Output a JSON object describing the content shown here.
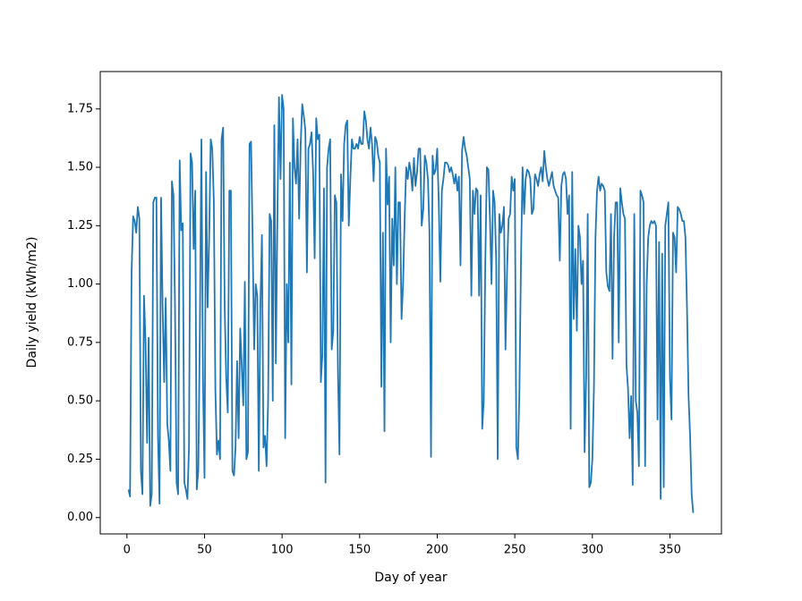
{
  "chart_data": {
    "type": "line",
    "xlabel": "Day of year",
    "ylabel": "Daily yield (kWh/m2)",
    "color": "#1f77b4",
    "xlim": [
      -17.2,
      383.2
    ],
    "ylim": [
      -0.07,
      1.91
    ],
    "xticks": [
      0,
      50,
      100,
      150,
      200,
      250,
      300,
      350
    ],
    "yticks": [
      {
        "value": 0,
        "label": "0.00"
      },
      {
        "value": 0.25,
        "label": "0.25"
      },
      {
        "value": 0.5,
        "label": "0.50"
      },
      {
        "value": 0.75,
        "label": "0.75"
      },
      {
        "value": 1,
        "label": "1.00"
      },
      {
        "value": 1.25,
        "label": "1.25"
      },
      {
        "value": 1.5,
        "label": "1.50"
      },
      {
        "value": 1.75,
        "label": "1.75"
      }
    ],
    "x": [
      1,
      2,
      3,
      4,
      5,
      6,
      7,
      8,
      9,
      10,
      11,
      12,
      13,
      14,
      15,
      16,
      17,
      18,
      19,
      20,
      21,
      22,
      23,
      24,
      25,
      26,
      27,
      28,
      29,
      30,
      31,
      32,
      33,
      34,
      35,
      36,
      37,
      38,
      39,
      40,
      41,
      42,
      43,
      44,
      45,
      46,
      47,
      48,
      49,
      50,
      51,
      52,
      53,
      54,
      55,
      56,
      57,
      58,
      59,
      60,
      61,
      62,
      63,
      64,
      65,
      66,
      67,
      68,
      69,
      70,
      71,
      72,
      73,
      74,
      75,
      76,
      77,
      78,
      79,
      80,
      81,
      82,
      83,
      84,
      85,
      86,
      87,
      88,
      89,
      90,
      91,
      92,
      93,
      94,
      95,
      96,
      97,
      98,
      99,
      100,
      101,
      102,
      103,
      104,
      105,
      106,
      107,
      108,
      109,
      110,
      111,
      112,
      113,
      114,
      115,
      116,
      117,
      118,
      119,
      120,
      121,
      122,
      123,
      124,
      125,
      126,
      127,
      128,
      129,
      130,
      131,
      132,
      133,
      134,
      135,
      136,
      137,
      138,
      139,
      140,
      141,
      142,
      143,
      144,
      145,
      146,
      147,
      148,
      149,
      150,
      151,
      152,
      153,
      154,
      155,
      156,
      157,
      158,
      159,
      160,
      161,
      162,
      163,
      164,
      165,
      166,
      167,
      168,
      169,
      170,
      171,
      172,
      173,
      174,
      175,
      176,
      177,
      178,
      179,
      180,
      181,
      182,
      183,
      184,
      185,
      186,
      187,
      188,
      189,
      190,
      191,
      192,
      193,
      194,
      195,
      196,
      197,
      198,
      199,
      200,
      201,
      202,
      203,
      204,
      205,
      206,
      207,
      208,
      209,
      210,
      211,
      212,
      213,
      214,
      215,
      216,
      217,
      218,
      219,
      220,
      221,
      222,
      223,
      224,
      225,
      226,
      227,
      228,
      229,
      230,
      231,
      232,
      233,
      234,
      235,
      236,
      237,
      238,
      239,
      240,
      241,
      242,
      243,
      244,
      245,
      246,
      247,
      248,
      249,
      250,
      251,
      252,
      253,
      254,
      255,
      256,
      257,
      258,
      259,
      260,
      261,
      262,
      263,
      264,
      265,
      266,
      267,
      268,
      269,
      270,
      271,
      272,
      273,
      274,
      275,
      276,
      277,
      278,
      279,
      280,
      281,
      282,
      283,
      284,
      285,
      286,
      287,
      288,
      289,
      290,
      291,
      292,
      293,
      294,
      295,
      296,
      297,
      298,
      299,
      300,
      301,
      302,
      303,
      304,
      305,
      306,
      307,
      308,
      309,
      310,
      311,
      312,
      313,
      314,
      315,
      316,
      317,
      318,
      319,
      320,
      321,
      322,
      323,
      324,
      325,
      326,
      327,
      328,
      329,
      330,
      331,
      332,
      333,
      334,
      335,
      336,
      337,
      338,
      339,
      340,
      341,
      342,
      343,
      344,
      345,
      346,
      347,
      348,
      349,
      350,
      351,
      352,
      353,
      354,
      355,
      356,
      357,
      358,
      359,
      360,
      361,
      362,
      363,
      364,
      365
    ],
    "values": [
      0.12,
      0.09,
      1.05,
      1.29,
      1.27,
      1.22,
      1.33,
      1.28,
      0.2,
      0.1,
      0.95,
      0.75,
      0.32,
      0.77,
      0.05,
      0.1,
      1.35,
      1.37,
      1.37,
      0.35,
      0.06,
      1.37,
      0.9,
      0.58,
      0.94,
      0.4,
      0.33,
      0.2,
      1.44,
      1.38,
      0.9,
      0.15,
      0.1,
      1.53,
      1.23,
      1.26,
      0.15,
      0.12,
      0.08,
      0.3,
      1.56,
      1.52,
      1.15,
      1.4,
      0.12,
      0.2,
      0.8,
      1.62,
      0.6,
      0.17,
      1.48,
      0.9,
      1.2,
      1.62,
      1.58,
      1.36,
      0.55,
      0.27,
      0.33,
      0.25,
      1.62,
      1.67,
      0.9,
      0.6,
      0.45,
      1.4,
      1.4,
      0.2,
      0.18,
      0.3,
      0.67,
      0.34,
      0.81,
      0.65,
      0.48,
      1.01,
      0.25,
      0.28,
      1.6,
      1.61,
      1.2,
      0.72,
      1.0,
      0.95,
      0.2,
      0.9,
      1.21,
      0.3,
      0.35,
      0.22,
      0.5,
      1.3,
      1.27,
      0.5,
      1.68,
      0.66,
      1.3,
      1.8,
      1.45,
      1.81,
      1.75,
      0.34,
      1.0,
      0.75,
      1.52,
      0.57,
      1.71,
      1.5,
      1.43,
      1.62,
      1.28,
      1.6,
      1.77,
      1.72,
      1.66,
      1.05,
      1.58,
      1.6,
      1.65,
      1.48,
      1.11,
      1.71,
      1.62,
      1.64,
      0.58,
      0.7,
      1.41,
      0.15,
      1.5,
      1.58,
      1.62,
      0.72,
      0.8,
      1.38,
      1.35,
      0.63,
      0.27,
      1.47,
      1.27,
      1.6,
      1.68,
      1.7,
      1.25,
      1.45,
      1.62,
      1.58,
      1.58,
      1.6,
      1.58,
      1.63,
      1.6,
      1.6,
      1.74,
      1.7,
      1.62,
      1.58,
      1.67,
      1.6,
      1.44,
      1.63,
      1.61,
      1.55,
      1.52,
      0.56,
      1.22,
      0.37,
      1.58,
      1.34,
      1.46,
      0.75,
      1.28,
      1.08,
      1.5,
      1.0,
      1.35,
      1.35,
      0.85,
      1.0,
      1.28,
      1.5,
      1.45,
      1.52,
      1.48,
      1.4,
      1.54,
      1.42,
      1.48,
      1.58,
      1.58,
      1.25,
      1.32,
      1.55,
      1.52,
      1.45,
      1.22,
      0.26,
      1.55,
      1.47,
      1.49,
      1.58,
      1.35,
      1.01,
      1.4,
      1.45,
      1.52,
      1.52,
      1.51,
      1.48,
      1.5,
      1.47,
      1.43,
      1.47,
      1.4,
      1.46,
      1.08,
      1.57,
      1.63,
      1.58,
      1.55,
      1.5,
      1.45,
      0.95,
      1.4,
      1.3,
      1.41,
      1.4,
      0.95,
      1.38,
      0.38,
      0.5,
      1.1,
      1.5,
      1.49,
      1.28,
      1.0,
      1.4,
      1.35,
      1.1,
      0.25,
      1.3,
      1.22,
      1.25,
      1.33,
      0.72,
      1.05,
      1.28,
      1.3,
      1.46,
      1.4,
      1.45,
      0.3,
      0.25,
      0.55,
      1.1,
      1.5,
      1.3,
      1.45,
      1.49,
      1.48,
      1.45,
      1.3,
      1.32,
      1.47,
      1.45,
      1.42,
      1.47,
      1.5,
      1.44,
      1.57,
      1.5,
      1.45,
      1.42,
      1.45,
      1.48,
      1.42,
      1.4,
      1.38,
      1.37,
      1.1,
      1.42,
      1.47,
      1.48,
      1.45,
      1.3,
      1.38,
      0.38,
      1.48,
      0.85,
      1.15,
      0.8,
      1.25,
      1.2,
      1.0,
      1.1,
      0.28,
      0.6,
      1.3,
      0.13,
      0.15,
      0.25,
      0.55,
      1.2,
      1.4,
      1.46,
      1.4,
      1.43,
      1.42,
      1.4,
      1.05,
      0.99,
      0.97,
      1.3,
      0.68,
      1.2,
      1.35,
      1.35,
      0.75,
      1.41,
      1.35,
      1.3,
      1.28,
      0.65,
      0.55,
      0.34,
      0.52,
      0.14,
      1.3,
      0.5,
      0.45,
      0.22,
      1.4,
      1.38,
      1.35,
      0.22,
      1.0,
      1.2,
      1.25,
      1.27,
      1.26,
      1.27,
      1.25,
      0.42,
      1.18,
      0.08,
      1.13,
      0.13,
      1.25,
      1.3,
      1.35,
      0.6,
      0.42,
      1.22,
      1.2,
      1.05,
      1.33,
      1.32,
      1.3,
      1.27,
      1.27,
      1.2,
      0.9,
      0.52,
      0.35,
      0.1,
      0.02
    ]
  }
}
